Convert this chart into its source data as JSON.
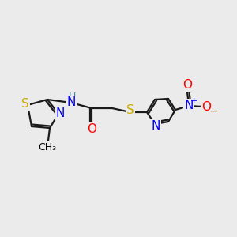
{
  "bg_color": "#ebebeb",
  "bond_color": "#1a1a1a",
  "atom_colors": {
    "S": "#ccaa00",
    "N": "#0000ee",
    "O": "#ff0000",
    "H": "#4a8fa8"
  },
  "font_size": 10,
  "figsize": [
    3.0,
    3.0
  ],
  "dpi": 100,
  "xlim": [
    0,
    300
  ],
  "ylim": [
    0,
    300
  ]
}
